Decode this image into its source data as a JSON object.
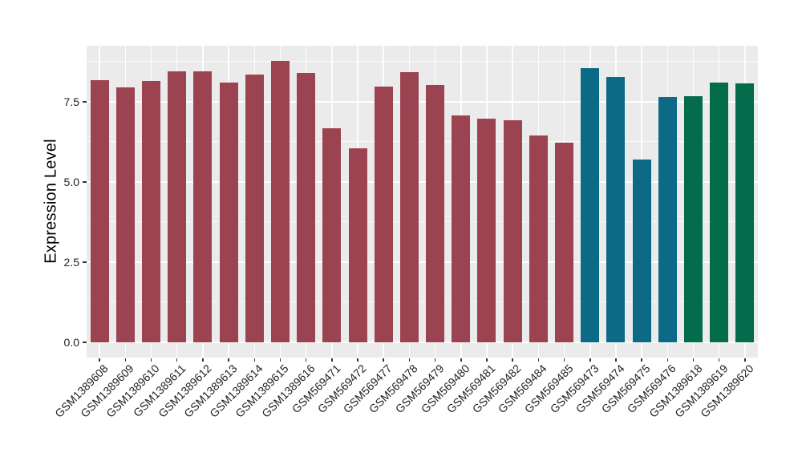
{
  "chart_data": {
    "type": "bar",
    "title": "",
    "xlabel": "",
    "ylabel": "Expression Level",
    "legend": "none",
    "grid": true,
    "panel_bg": "#EBEBEB",
    "grid_color": "#FFFFFF",
    "axis_tick_color": "#333333",
    "label_color": "#1F1F1F",
    "title_color": "#000000",
    "ylim": [
      -0.48,
      9.25
    ],
    "ytick_values": [
      0,
      2.5,
      5.0,
      7.5
    ],
    "ytick_labels": [
      "0.0",
      "2.5",
      "5.0",
      "7.5"
    ],
    "yminor_values": [
      1.25,
      3.75,
      6.25,
      8.75
    ],
    "categories": [
      "GSM1389608",
      "GSM1389609",
      "GSM1389610",
      "GSM1389611",
      "GSM1389612",
      "GSM1389613",
      "GSM1389614",
      "GSM1389615",
      "GSM1389616",
      "GSM569471",
      "GSM569472",
      "GSM569477",
      "GSM569478",
      "GSM569479",
      "GSM569480",
      "GSM569481",
      "GSM569482",
      "GSM569484",
      "GSM569485",
      "GSM569473",
      "GSM569474",
      "GSM569475",
      "GSM569476",
      "GSM1389618",
      "GSM1389619",
      "GSM1389620"
    ],
    "values": [
      8.18,
      7.95,
      8.15,
      8.45,
      8.45,
      8.1,
      8.35,
      8.78,
      8.4,
      6.68,
      6.05,
      7.97,
      8.42,
      8.03,
      7.08,
      6.97,
      6.92,
      6.45,
      6.22,
      8.56,
      8.28,
      5.7,
      7.65,
      7.67,
      8.1,
      8.07
    ],
    "groups": [
      "maroon",
      "maroon",
      "maroon",
      "maroon",
      "maroon",
      "maroon",
      "maroon",
      "maroon",
      "maroon",
      "maroon",
      "maroon",
      "maroon",
      "maroon",
      "maroon",
      "maroon",
      "maroon",
      "maroon",
      "maroon",
      "maroon",
      "teal",
      "teal",
      "teal",
      "teal",
      "green",
      "green",
      "green"
    ],
    "group_colors": {
      "maroon": "#9B4351",
      "teal": "#0C6A87",
      "green": "#046B4B"
    }
  }
}
